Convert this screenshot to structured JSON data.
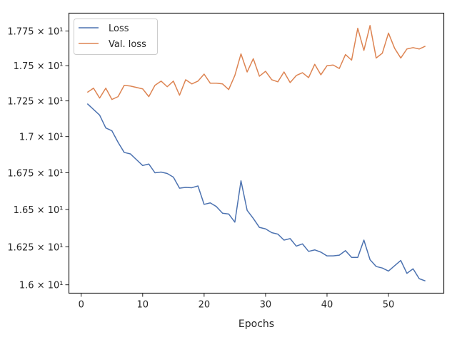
{
  "chart_data": {
    "type": "line",
    "title": "",
    "xlabel": "Epochs",
    "ylabel": "",
    "xlim": [
      -2,
      59
    ],
    "ylim": [
      15.945,
      17.88
    ],
    "yscale": "log",
    "grid": false,
    "legend": {
      "placement": "top-left",
      "entries": [
        "Loss",
        "Val. loss"
      ]
    },
    "x_ticks": [
      0,
      10,
      20,
      30,
      40,
      50
    ],
    "x_tick_labels": [
      "0",
      "10",
      "20",
      "30",
      "40",
      "50"
    ],
    "y_ticks": [
      16.0,
      16.25,
      16.5,
      16.75,
      17.0,
      17.25,
      17.5,
      17.75
    ],
    "y_tick_labels": [
      "1.6 × 10¹",
      "1.625 × 10¹",
      "1.65 × 10¹",
      "1.675 × 10¹",
      "1.7 × 10¹",
      "1.725 × 10¹",
      "1.75 × 10¹",
      "1.775 × 10¹"
    ],
    "x": [
      1,
      2,
      3,
      4,
      5,
      6,
      7,
      8,
      9,
      10,
      11,
      12,
      13,
      14,
      15,
      16,
      17,
      18,
      19,
      20,
      21,
      22,
      23,
      24,
      25,
      26,
      27,
      28,
      29,
      30,
      31,
      32,
      33,
      34,
      35,
      36,
      37,
      38,
      39,
      40,
      41,
      42,
      43,
      44,
      45,
      46,
      47,
      48,
      49,
      50,
      51,
      52,
      53,
      54,
      55,
      56
    ],
    "series": [
      {
        "name": "Loss",
        "color": "#4c72b0",
        "values": [
          17.23,
          17.19,
          17.15,
          17.06,
          17.04,
          16.96,
          16.89,
          16.88,
          16.84,
          16.8,
          16.81,
          16.75,
          16.755,
          16.745,
          16.72,
          16.645,
          16.65,
          16.648,
          16.66,
          16.535,
          16.545,
          16.52,
          16.475,
          16.47,
          16.415,
          16.695,
          16.495,
          16.44,
          16.38,
          16.37,
          16.345,
          16.335,
          16.295,
          16.305,
          16.255,
          16.27,
          16.22,
          16.23,
          16.215,
          16.19,
          16.19,
          16.195,
          16.225,
          16.18,
          16.18,
          16.295,
          16.165,
          16.12,
          16.11,
          16.09,
          16.125,
          16.16,
          16.075,
          16.105,
          16.04,
          16.025
        ]
      },
      {
        "name": "Val. loss",
        "color": "#dd8452",
        "values": [
          17.31,
          17.34,
          17.27,
          17.34,
          17.26,
          17.28,
          17.36,
          17.355,
          17.345,
          17.335,
          17.28,
          17.36,
          17.39,
          17.35,
          17.39,
          17.29,
          17.4,
          17.37,
          17.39,
          17.44,
          17.375,
          17.375,
          17.37,
          17.33,
          17.43,
          17.585,
          17.455,
          17.55,
          17.425,
          17.46,
          17.4,
          17.385,
          17.455,
          17.38,
          17.43,
          17.45,
          17.415,
          17.51,
          17.435,
          17.5,
          17.505,
          17.48,
          17.58,
          17.54,
          17.77,
          17.61,
          17.79,
          17.555,
          17.59,
          17.735,
          17.625,
          17.555,
          17.62,
          17.63,
          17.62,
          17.64
        ]
      }
    ]
  }
}
